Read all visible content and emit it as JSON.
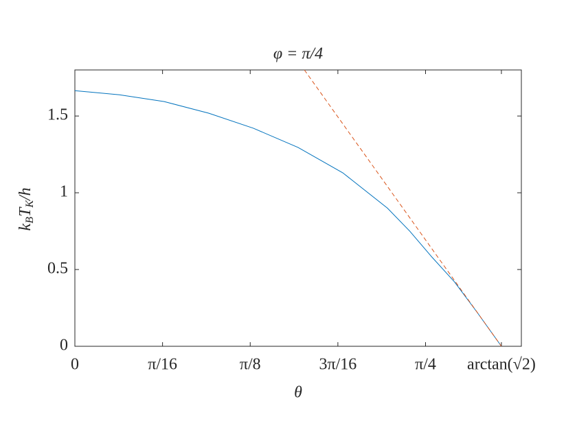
{
  "chart_data": {
    "type": "line",
    "title": "φ = π/4",
    "xlabel": "θ",
    "ylabel": "kBTK/h",
    "series": [
      {
        "color": "#0072BD",
        "dash": false,
        "x": [
          0,
          0.1,
          0.2,
          0.3,
          0.4,
          0.5,
          0.6,
          0.7,
          0.75,
          0.8,
          0.85,
          0.9,
          0.9553
        ],
        "values": [
          1.665,
          1.638,
          1.594,
          1.518,
          1.42,
          1.295,
          1.13,
          0.9,
          0.75,
          0.58,
          0.42,
          0.225,
          0
        ]
      },
      {
        "color": "#D95319",
        "dash": true,
        "x": [
          0.514,
          0.9553
        ],
        "values": [
          1.8,
          0
        ]
      }
    ],
    "xlim": [
      0,
      1
    ],
    "ylim": [
      0,
      1.8
    ],
    "xticks": [
      0,
      {
        "value": 0.19635,
        "label": "π/16"
      },
      {
        "value": 0.3927,
        "label": "π/8"
      },
      {
        "value": 0.58905,
        "label": "3π/16"
      },
      {
        "value": 0.7854,
        "label": "π/4"
      },
      {
        "value": 0.9553,
        "label": "arctan(√2)"
      }
    ],
    "yticks": [
      0,
      0.5,
      1,
      1.5
    ],
    "grid": false
  }
}
